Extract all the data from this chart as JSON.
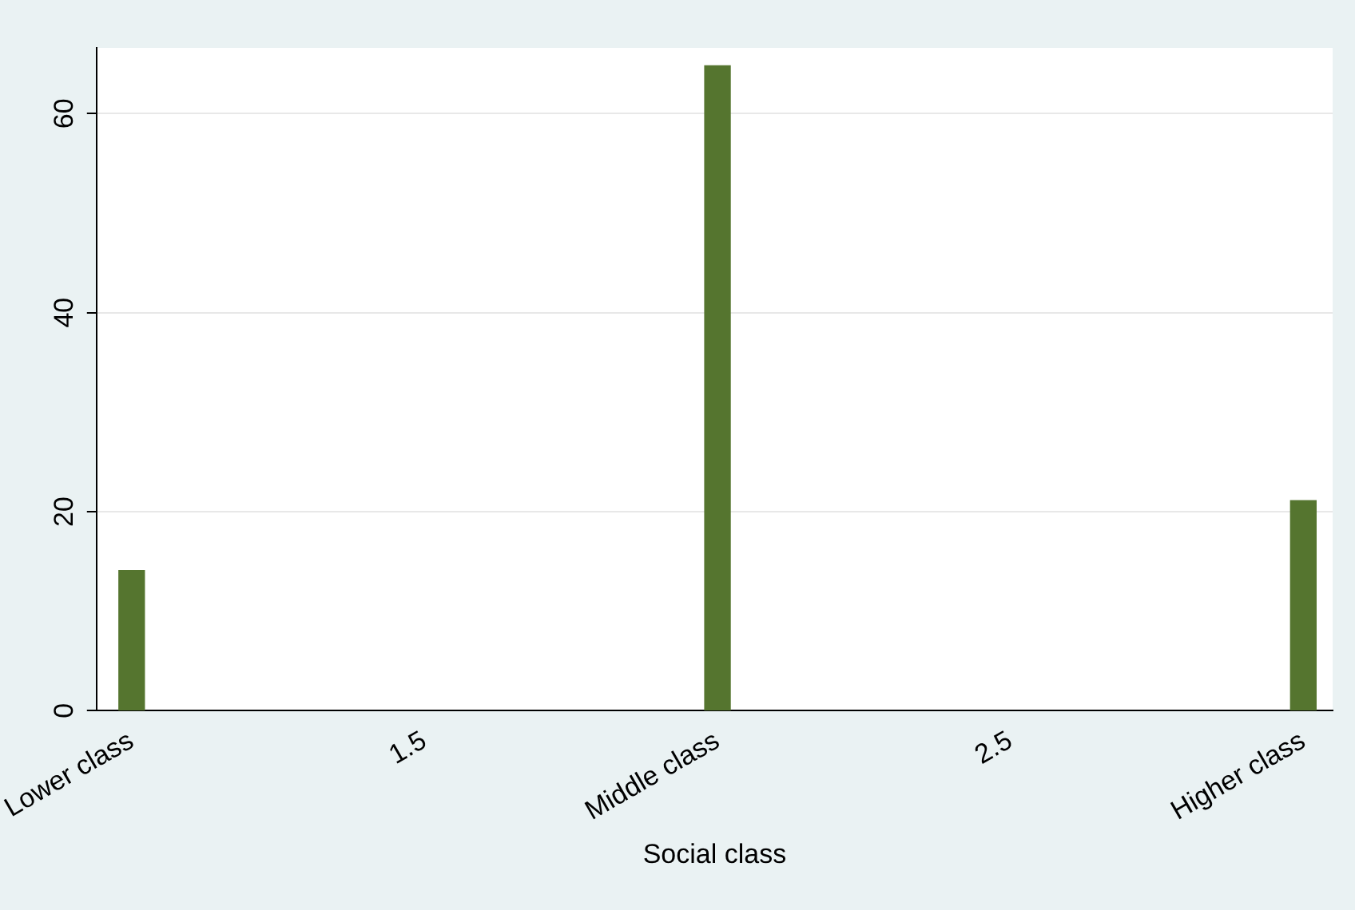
{
  "chart_data": {
    "type": "bar",
    "xlabel": "Social class",
    "x": [
      1,
      2,
      3
    ],
    "values": [
      14.1,
      64.8,
      21.1
    ],
    "color": "#55752f",
    "xlim": [
      0.94,
      3.05
    ],
    "xticks": [
      {
        "value": 1,
        "label": "Lower class"
      },
      1.5,
      {
        "value": 2,
        "label": "Middle class"
      },
      2.5,
      {
        "value": 3,
        "label": "Higher class"
      }
    ],
    "ylim": [
      0,
      66.6
    ],
    "yticks": [
      0,
      20,
      40,
      60
    ],
    "grid": "y",
    "legend": false
  }
}
